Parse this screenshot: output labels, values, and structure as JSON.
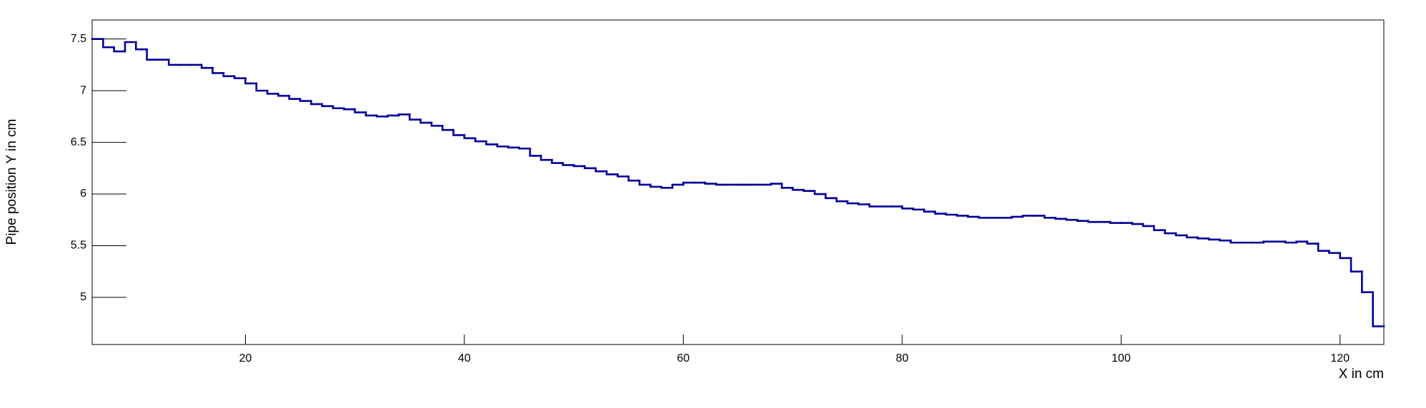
{
  "chart_data": {
    "type": "histogram",
    "x_label": "X in cm",
    "y_label": "Pipe position Y in cm",
    "color": "#000099",
    "xlim": [
      6,
      124
    ],
    "ylim": [
      4.544,
      7.684
    ],
    "xticks": [
      20,
      40,
      60,
      80,
      100,
      120
    ],
    "yticks": [
      5,
      5.5,
      6,
      6.5,
      7,
      7.5
    ],
    "bins": [
      6,
      7,
      8,
      9,
      10,
      11,
      12,
      13,
      14,
      15,
      16,
      17,
      18,
      19,
      20,
      21,
      22,
      23,
      24,
      25,
      26,
      27,
      28,
      29,
      30,
      31,
      32,
      33,
      34,
      35,
      36,
      37,
      38,
      39,
      40,
      41,
      42,
      43,
      44,
      45,
      46,
      47,
      48,
      49,
      50,
      51,
      52,
      53,
      54,
      55,
      56,
      57,
      58,
      59,
      60,
      61,
      62,
      63,
      64,
      65,
      66,
      67,
      68,
      69,
      70,
      71,
      72,
      73,
      74,
      75,
      76,
      77,
      78,
      79,
      80,
      81,
      82,
      83,
      84,
      85,
      86,
      87,
      88,
      89,
      90,
      91,
      92,
      93,
      94,
      95,
      96,
      97,
      98,
      99,
      100,
      101,
      102,
      103,
      104,
      105,
      106,
      107,
      108,
      109,
      110,
      111,
      112,
      113,
      114,
      115,
      116,
      117,
      118,
      119,
      120,
      121,
      122,
      123,
      124
    ],
    "values": [
      7.5,
      7.42,
      7.38,
      7.47,
      7.4,
      7.3,
      7.3,
      7.25,
      7.25,
      7.25,
      7.22,
      7.17,
      7.14,
      7.12,
      7.07,
      7.0,
      6.97,
      6.95,
      6.92,
      6.9,
      6.87,
      6.85,
      6.83,
      6.82,
      6.79,
      6.76,
      6.75,
      6.76,
      6.77,
      6.72,
      6.69,
      6.66,
      6.62,
      6.57,
      6.54,
      6.51,
      6.48,
      6.46,
      6.45,
      6.44,
      6.37,
      6.33,
      6.3,
      6.28,
      6.27,
      6.25,
      6.22,
      6.19,
      6.17,
      6.13,
      6.09,
      6.07,
      6.06,
      6.09,
      6.11,
      6.11,
      6.1,
      6.09,
      6.09,
      6.09,
      6.09,
      6.09,
      6.1,
      6.06,
      6.04,
      6.03,
      6.0,
      5.96,
      5.93,
      5.91,
      5.9,
      5.88,
      5.88,
      5.88,
      5.86,
      5.85,
      5.83,
      5.81,
      5.8,
      5.79,
      5.78,
      5.77,
      5.77,
      5.77,
      5.78,
      5.79,
      5.79,
      5.77,
      5.76,
      5.75,
      5.74,
      5.73,
      5.73,
      5.72,
      5.72,
      5.71,
      5.69,
      5.65,
      5.62,
      5.6,
      5.58,
      5.57,
      5.56,
      5.55,
      5.53,
      5.53,
      5.53,
      5.54,
      5.54,
      5.53,
      5.54,
      5.52,
      5.45,
      5.43,
      5.38,
      5.25,
      5.05,
      4.72
    ]
  }
}
